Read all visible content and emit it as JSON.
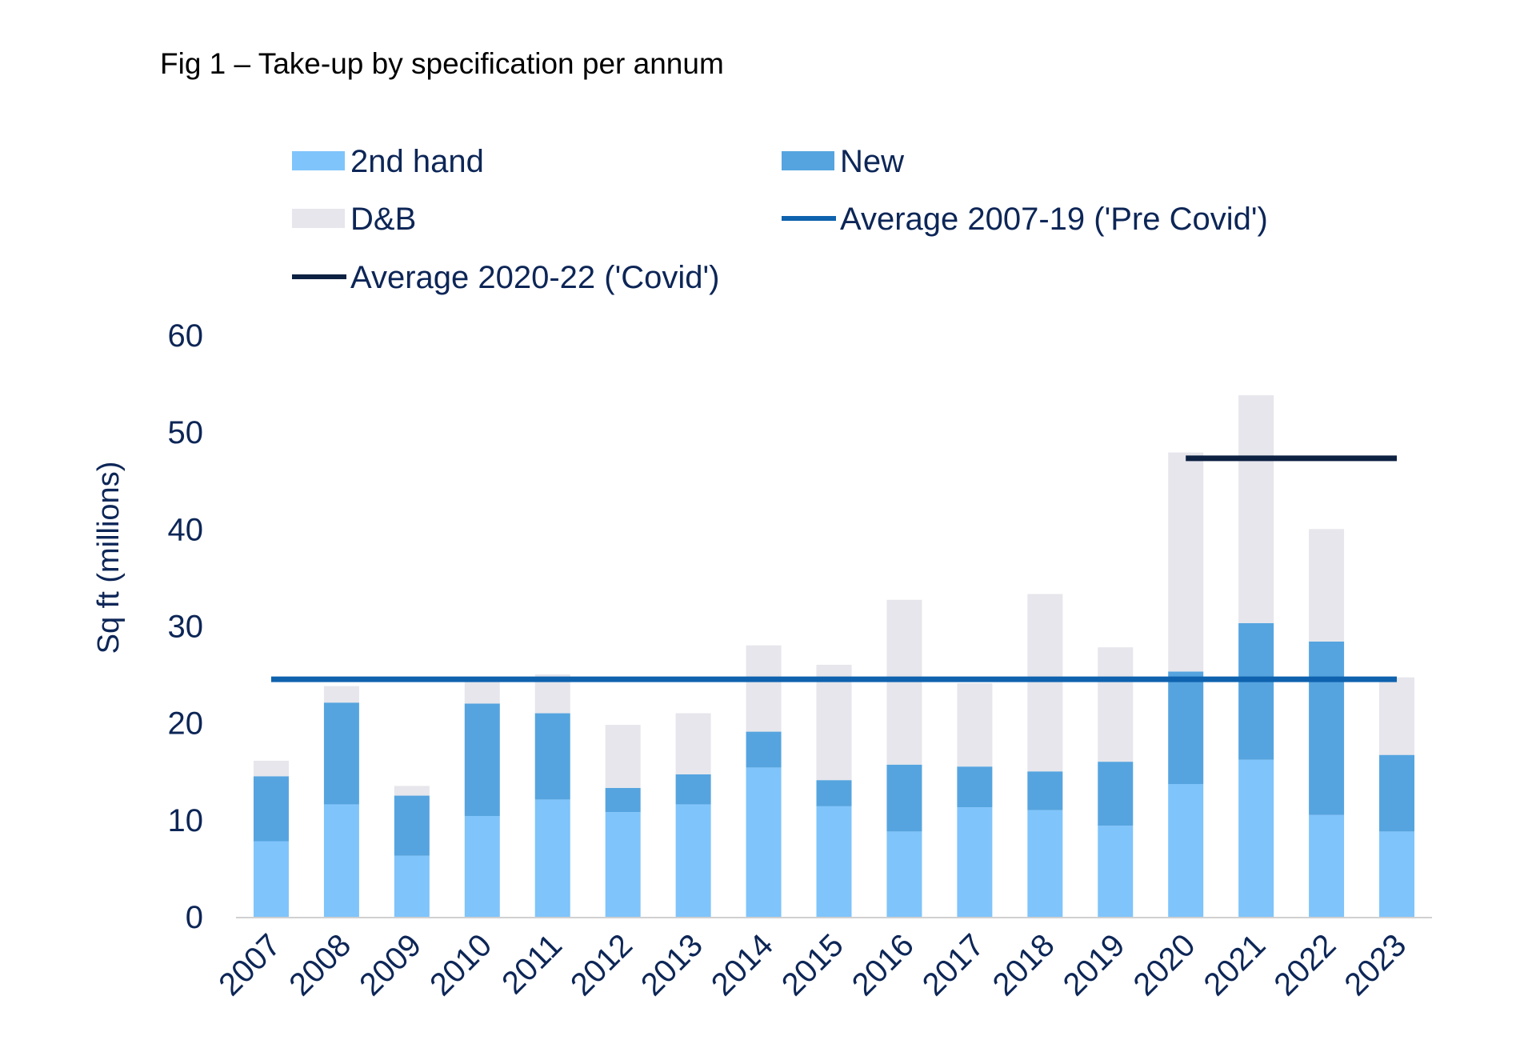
{
  "chart_data": {
    "type": "bar",
    "stacked": true,
    "title": "Fig 1 – Take-up by specification per annum",
    "xlabel": "",
    "ylabel": "Sq ft (millions)",
    "ylim": [
      0,
      60
    ],
    "yticks": [
      0,
      10,
      20,
      30,
      40,
      50,
      60
    ],
    "categories": [
      "2007",
      "2008",
      "2009",
      "2010",
      "2011",
      "2012",
      "2013",
      "2014",
      "2015",
      "2016",
      "2017",
      "2018",
      "2019",
      "2020",
      "2021",
      "2022",
      "2023"
    ],
    "series": [
      {
        "name": "2nd hand",
        "color": "#7fc4fb",
        "values": [
          7.8,
          11.6,
          6.3,
          10.4,
          12.1,
          10.8,
          11.6,
          15.4,
          11.4,
          8.8,
          11.3,
          11.0,
          9.4,
          13.7,
          16.2,
          10.5,
          8.8
        ]
      },
      {
        "name": "New",
        "color": "#55a4df",
        "values": [
          6.7,
          10.5,
          6.2,
          11.6,
          8.9,
          2.5,
          3.1,
          3.7,
          2.7,
          6.9,
          4.2,
          4.0,
          6.6,
          11.6,
          14.1,
          17.9,
          7.9
        ]
      },
      {
        "name": "D&B",
        "color": "#e6e6ec",
        "values": [
          1.6,
          1.7,
          1.0,
          2.3,
          4.0,
          6.5,
          6.3,
          8.9,
          11.9,
          17.0,
          8.6,
          18.3,
          11.8,
          22.6,
          23.5,
          11.6,
          8.0
        ]
      }
    ],
    "lines": [
      {
        "name": "Average 2007-19 ('Pre Covid')",
        "color": "#0f62ae",
        "value": 24.5,
        "from": "2007",
        "to": "2023"
      },
      {
        "name": "Average 2020-22 ('Covid')",
        "color": "#0d2142",
        "value": 47.3,
        "from": "2020",
        "to": "2023"
      }
    ],
    "legend": {
      "position": "top",
      "items": [
        {
          "label": "2nd hand",
          "kind": "box",
          "color": "#7fc4fb"
        },
        {
          "label": "New",
          "kind": "box",
          "color": "#55a4df"
        },
        {
          "label": "D&B",
          "kind": "box",
          "color": "#e6e6ec"
        },
        {
          "label": "Average 2007-19 ('Pre Covid')",
          "kind": "line",
          "color": "#0f62ae"
        },
        {
          "label": "Average 2020-22 ('Covid')",
          "kind": "line",
          "color": "#0d2142"
        }
      ]
    }
  }
}
